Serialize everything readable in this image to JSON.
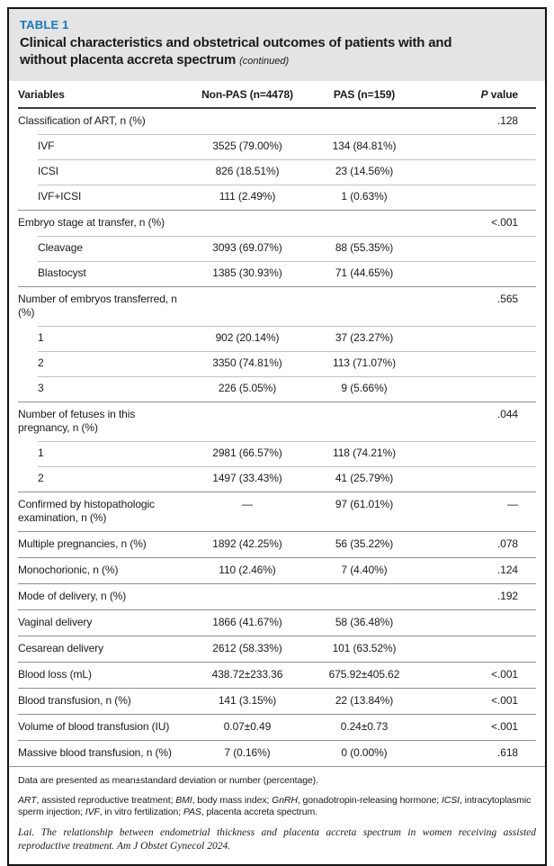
{
  "colors": {
    "accent_blue": "#1779ba",
    "band_gray": "#e4e4e4",
    "text_black": "#1a1a1a",
    "rule_dark": "#8f8f8f",
    "rule_light": "#c2c2c2",
    "border_black": "#111111"
  },
  "table": {
    "label": "TABLE 1",
    "title_line1": "Clinical characteristics and obstetrical outcomes of patients with and",
    "title_line2": "without placenta accreta spectrum",
    "continued": "(continued)",
    "columns": {
      "variables": "Variables",
      "nonpas": "Non-PAS (n=4478)",
      "pas": "PAS (n=159)",
      "p_italic": "P",
      "p_rest": " value"
    },
    "rows": [
      {
        "label": "Classification of ART, n (%)",
        "nonpas": "",
        "pas": "",
        "p": ".128",
        "indent": false
      },
      {
        "label": "IVF",
        "nonpas": "3525 (79.00%)",
        "pas": "134 (84.81%)",
        "p": "",
        "indent": true
      },
      {
        "label": "ICSI",
        "nonpas": "826 (18.51%)",
        "pas": "23 (14.56%)",
        "p": "",
        "indent": true
      },
      {
        "label": "IVF+ICSI",
        "nonpas": "111 (2.49%)",
        "pas": "1 (0.63%)",
        "p": "",
        "indent": true
      },
      {
        "label": "Embryo stage at transfer, n (%)",
        "nonpas": "",
        "pas": "",
        "p": "<.001",
        "indent": false
      },
      {
        "label": "Cleavage",
        "nonpas": "3093 (69.07%)",
        "pas": "88 (55.35%)",
        "p": "",
        "indent": true
      },
      {
        "label": "Blastocyst",
        "nonpas": "1385 (30.93%)",
        "pas": "71 (44.65%)",
        "p": "",
        "indent": true
      },
      {
        "label": "Number of embryos transferred, n (%)",
        "nonpas": "",
        "pas": "",
        "p": ".565",
        "indent": false
      },
      {
        "label": "1",
        "nonpas": "902 (20.14%)",
        "pas": "37 (23.27%)",
        "p": "",
        "indent": true
      },
      {
        "label": "2",
        "nonpas": "3350 (74.81%)",
        "pas": "113 (71.07%)",
        "p": "",
        "indent": true
      },
      {
        "label": "3",
        "nonpas": "226 (5.05%)",
        "pas": "9 (5.66%)",
        "p": "",
        "indent": true
      },
      {
        "label": "Number of fetuses in this pregnancy, n (%)",
        "nonpas": "",
        "pas": "",
        "p": ".044",
        "indent": false
      },
      {
        "label": "1",
        "nonpas": "2981 (66.57%)",
        "pas": "118 (74.21%)",
        "p": "",
        "indent": true
      },
      {
        "label": "2",
        "nonpas": "1497 (33.43%)",
        "pas": "41 (25.79%)",
        "p": "",
        "indent": true
      },
      {
        "label": "Confirmed by histopathologic examination, n (%)",
        "nonpas": "—",
        "pas": "97 (61.01%)",
        "p": "—",
        "indent": false
      },
      {
        "label": "Multiple pregnancies, n (%)",
        "nonpas": "1892 (42.25%)",
        "pas": "56 (35.22%)",
        "p": ".078",
        "indent": false
      },
      {
        "label": "Monochorionic, n (%)",
        "nonpas": "110 (2.46%)",
        "pas": "7 (4.40%)",
        "p": ".124",
        "indent": false
      },
      {
        "label": "Mode of delivery, n (%)",
        "nonpas": "",
        "pas": "",
        "p": ".192",
        "indent": false
      },
      {
        "label": "Vaginal delivery",
        "nonpas": "1866 (41.67%)",
        "pas": "58 (36.48%)",
        "p": "",
        "indent": false
      },
      {
        "label": "Cesarean delivery",
        "nonpas": "2612 (58.33%)",
        "pas": "101 (63.52%)",
        "p": "",
        "indent": false
      },
      {
        "label": "Blood loss (mL)",
        "nonpas": "438.72±233.36",
        "pas": "675.92±405.62",
        "p": "<.001",
        "indent": false
      },
      {
        "label": "Blood transfusion, n (%)",
        "nonpas": "141 (3.15%)",
        "pas": "22 (13.84%)",
        "p": "<.001",
        "indent": false
      },
      {
        "label": "Volume of blood transfusion (IU)",
        "nonpas": "0.07±0.49",
        "pas": "0.24±0.73",
        "p": "<.001",
        "indent": false
      },
      {
        "label": "Massive blood transfusion, n (%)",
        "nonpas": "7 (0.16%)",
        "pas": "0 (0.00%)",
        "p": ".618",
        "indent": false
      }
    ]
  },
  "footnotes": {
    "data_note": "Data are presented as mean±standard deviation or number (percentage).",
    "abbreviations": [
      {
        "abbr": "ART",
        "desc": ", assisted reproductive treatment; "
      },
      {
        "abbr": "BMI",
        "desc": ", body mass index; "
      },
      {
        "abbr": "GnRH",
        "desc": ", gonadotropin-releasing hormone; "
      },
      {
        "abbr": "ICSI",
        "desc": ", intracytoplasmic sperm injection; "
      },
      {
        "abbr": "IVF",
        "desc": ", in vitro fertilization; "
      },
      {
        "abbr": "PAS",
        "desc": ", placenta accreta spectrum."
      }
    ],
    "citation": "Lai. The relationship between endometrial thickness and placenta accreta spectrum in women receiving assisted reproductive treatment. Am J Obstet Gynecol 2024."
  }
}
